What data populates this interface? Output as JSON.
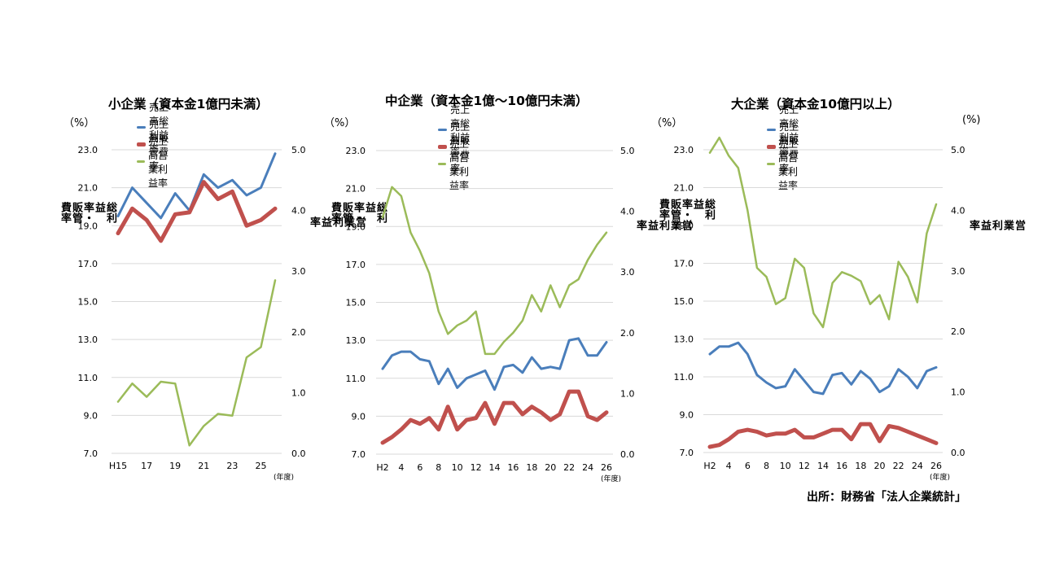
{
  "source": "出所：財務省「法人企業統計」",
  "colors": {
    "gross": "#4a7ebb",
    "sga": "#c0504d",
    "op": "#9bbb59",
    "grid": "#d9d9d9"
  },
  "chart_data": [
    {
      "type": "line",
      "title": "小企業（資本金1億円未満）",
      "left_unit": "（%）",
      "right_unit": "",
      "ylabel_left": "総利益率・販管費率",
      "ylabel_right": "営業利益率",
      "x_unit": "(年度)",
      "left_ticks": [
        "23.0",
        "21.0",
        "19.0",
        "17.0",
        "15.0",
        "13.0",
        "11.0",
        "9.0",
        "7.0"
      ],
      "right_ticks": [
        "5.0",
        "4.0",
        "3.0",
        "2.0",
        "1.0",
        "0.0"
      ],
      "ylim_left": [
        7,
        23
      ],
      "ylim_right": [
        0,
        5.0
      ],
      "x": [
        "H15",
        "16",
        "17",
        "18",
        "19",
        "20",
        "21",
        "22",
        "23",
        "24",
        "25",
        "26"
      ],
      "x_tick_labels": [
        "H15",
        "17",
        "19",
        "21",
        "23",
        "25"
      ],
      "legend": [
        "売上高総利益率",
        "売上高販管費率",
        "売上高営業利益率"
      ],
      "series": [
        {
          "name": "売上高総利益率",
          "axis": "left",
          "values": [
            19.5,
            21.0,
            20.2,
            19.4,
            20.7,
            19.8,
            21.7,
            21.0,
            21.4,
            20.6,
            21.0,
            22.8
          ]
        },
        {
          "name": "売上高販管費率",
          "axis": "left",
          "values": [
            18.6,
            19.9,
            19.3,
            18.2,
            19.6,
            19.7,
            21.3,
            20.4,
            20.8,
            19.0,
            19.3,
            19.9
          ]
        },
        {
          "name": "売上高営業利益率",
          "axis": "right",
          "values": [
            0.85,
            1.15,
            0.93,
            1.18,
            1.15,
            0.13,
            0.45,
            0.65,
            0.62,
            1.58,
            1.75,
            2.85
          ]
        }
      ]
    },
    {
      "type": "line",
      "title": "中企業（資本金1億～10億円未満）",
      "left_unit": "（%）",
      "right_unit": "",
      "ylabel_left": "総利益率・販管費率",
      "ylabel_right": "営業利益率",
      "x_unit": "(年度)",
      "left_ticks": [
        "23.0",
        "21.0",
        "19.0",
        "17.0",
        "15.0",
        "13.0",
        "11.0",
        "9.0",
        "7.0"
      ],
      "right_ticks": [
        "5.0",
        "4.0",
        "3.0",
        "2.0",
        "1.0",
        "0.0"
      ],
      "ylim_left": [
        7,
        23
      ],
      "ylim_right": [
        0,
        5.0
      ],
      "x": [
        "H2",
        "3",
        "4",
        "5",
        "6",
        "7",
        "8",
        "9",
        "10",
        "11",
        "12",
        "13",
        "14",
        "15",
        "16",
        "17",
        "18",
        "19",
        "20",
        "21",
        "22",
        "23",
        "24",
        "25",
        "26"
      ],
      "x_tick_labels": [
        "H2",
        "4",
        "6",
        "8",
        "10",
        "12",
        "14",
        "16",
        "18",
        "20",
        "22",
        "24",
        "26"
      ],
      "legend": [
        "売上高総利益率",
        "売上高販管費率",
        "売上高営業利益率"
      ],
      "series": [
        {
          "name": "売上高総利益率",
          "axis": "left",
          "values": [
            11.5,
            12.2,
            12.4,
            12.4,
            12.0,
            11.9,
            10.7,
            11.5,
            10.5,
            11.0,
            11.2,
            11.4,
            10.4,
            11.6,
            11.7,
            11.3,
            12.1,
            11.5,
            11.6,
            11.5,
            13.0,
            13.1,
            12.2,
            12.2,
            12.9
          ]
        },
        {
          "name": "売上高販管費率",
          "axis": "left",
          "values": [
            7.6,
            7.9,
            8.3,
            8.8,
            8.6,
            8.9,
            8.3,
            9.5,
            8.3,
            8.8,
            8.9,
            9.7,
            8.6,
            9.7,
            9.7,
            9.1,
            9.5,
            9.2,
            8.8,
            9.1,
            10.3,
            10.3,
            9.0,
            8.8,
            9.2
          ]
        },
        {
          "name": "売上高営業利益率",
          "axis": "right",
          "values": [
            3.9,
            4.4,
            4.25,
            3.65,
            3.35,
            2.98,
            2.35,
            1.98,
            2.12,
            2.2,
            2.35,
            1.65,
            1.65,
            1.85,
            2.0,
            2.2,
            2.62,
            2.35,
            2.78,
            2.42,
            2.78,
            2.88,
            3.2,
            3.45,
            3.65
          ]
        }
      ]
    },
    {
      "type": "line",
      "title": "大企業（資本金10億円以上）",
      "left_unit": "（%）",
      "right_unit": "(%)",
      "ylabel_left": "総利益率・販管費率",
      "ylabel_right": "営業利益率",
      "x_unit": "(年度)",
      "left_ticks": [
        "23.0",
        "21.0",
        "19.0",
        "17.0",
        "15.0",
        "13.0",
        "11.0",
        "9.0",
        "7.0"
      ],
      "right_ticks": [
        "5.0",
        "4.0",
        "3.0",
        "2.0",
        "1.0",
        "0.0"
      ],
      "ylim_left": [
        7,
        23
      ],
      "ylim_right": [
        0,
        5.0
      ],
      "x": [
        "H2",
        "3",
        "4",
        "5",
        "6",
        "7",
        "8",
        "9",
        "10",
        "11",
        "12",
        "13",
        "14",
        "15",
        "16",
        "17",
        "18",
        "19",
        "20",
        "21",
        "22",
        "23",
        "24",
        "25",
        "26"
      ],
      "x_tick_labels": [
        "H2",
        "4",
        "6",
        "8",
        "10",
        "12",
        "14",
        "16",
        "18",
        "20",
        "22",
        "24",
        "26"
      ],
      "legend": [
        "売上高総利益率",
        "売上高販管費率",
        "売上高営業利益率"
      ],
      "series": [
        {
          "name": "売上高総利益率",
          "axis": "left",
          "values": [
            12.2,
            12.6,
            12.6,
            12.8,
            12.2,
            11.1,
            10.7,
            10.4,
            10.5,
            11.4,
            10.8,
            10.2,
            10.1,
            11.1,
            11.2,
            10.6,
            11.3,
            10.9,
            10.2,
            10.5,
            11.4,
            11.0,
            10.4,
            11.3,
            11.5
          ]
        },
        {
          "name": "売上高販管費率",
          "axis": "left",
          "values": [
            7.3,
            7.4,
            7.7,
            8.1,
            8.2,
            8.1,
            7.9,
            8.0,
            8.0,
            8.2,
            7.8,
            7.8,
            8.0,
            8.2,
            8.2,
            7.7,
            8.5,
            8.5,
            7.6,
            8.4,
            8.3,
            8.1,
            7.9,
            7.7,
            7.5
          ]
        },
        {
          "name": "売上高営業利益率",
          "axis": "right",
          "values": [
            4.95,
            5.2,
            4.9,
            4.7,
            4.0,
            3.05,
            2.9,
            2.45,
            2.55,
            3.2,
            3.05,
            2.3,
            2.07,
            2.8,
            2.98,
            2.92,
            2.83,
            2.45,
            2.6,
            2.2,
            3.15,
            2.9,
            2.48,
            3.62,
            4.1
          ]
        }
      ]
    }
  ]
}
